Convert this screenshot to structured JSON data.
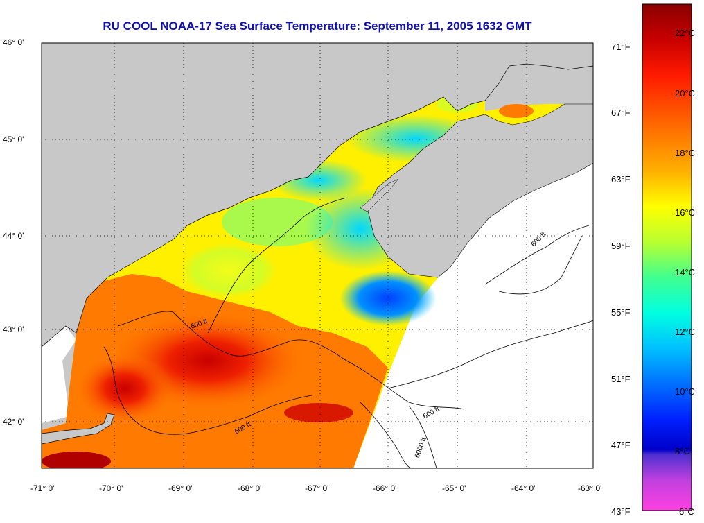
{
  "title": "RU COOL  NOAA-17  Sea Surface Temperature:  September 11, 2005 1632 GMT",
  "map": {
    "lat_labels": [
      "46° 0'",
      "45° 0'",
      "44° 0'",
      "43° 0'",
      "42° 0'"
    ],
    "lon_labels": [
      "-71° 0'",
      "-70° 0'",
      "-69° 0'",
      "-68° 0'",
      "-67° 0'",
      "-66° 0'",
      "-65° 0'",
      "-64° 0'",
      "-63° 0'"
    ],
    "contour_label": "600 ft",
    "contour_label_deep": "6000 ft"
  },
  "colorbar": {
    "celsius": [
      "22°C",
      "20°C",
      "18°C",
      "16°C",
      "14°C",
      "12°C",
      "10°C",
      "8°C",
      "6°C"
    ],
    "fahrenheit": [
      "71°F",
      "67°F",
      "63°F",
      "59°F",
      "55°F",
      "51°F",
      "47°F",
      "43°F"
    ]
  },
  "colors": {
    "land": "#c8c8c8",
    "nodata": "#ffffff",
    "title": "#1010b0"
  }
}
